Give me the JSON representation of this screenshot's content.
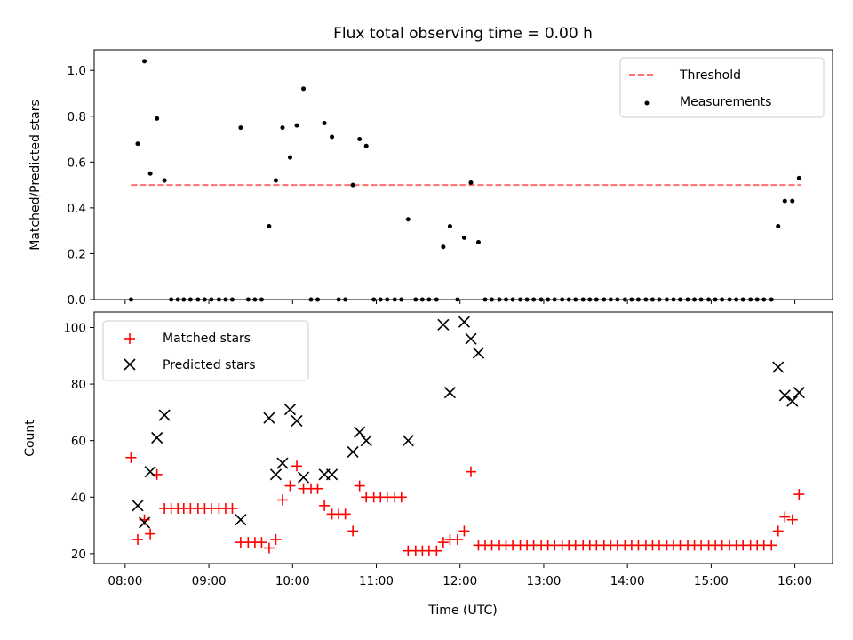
{
  "chart_data": [
    {
      "type": "scatter",
      "title": "Flux total observing time = 0.00 h",
      "xlabel": "",
      "ylabel": "Matched/Predicted stars",
      "xlim": [
        7.63,
        16.45
      ],
      "ylim": [
        0,
        1.09
      ],
      "yticks": [
        "0.0",
        "0.2",
        "0.4",
        "0.6",
        "0.8",
        "1.0"
      ],
      "ytick_values": [
        0,
        0.2,
        0.4,
        0.6,
        0.8,
        1.0
      ],
      "legend": {
        "placement": "top-right",
        "entries": [
          "Threshold",
          "Measurements"
        ]
      },
      "series": [
        {
          "name": "Threshold",
          "kind": "dashed-line",
          "color": "#ff6f6f",
          "x": [
            8.07,
            16.07
          ],
          "values": [
            0.5,
            0.5
          ]
        },
        {
          "name": "Measurements",
          "kind": "dot",
          "color": "#000000",
          "x": [
            8.07,
            8.15,
            8.23,
            8.3,
            8.38,
            8.47,
            8.55,
            8.63,
            8.7,
            8.78,
            8.87,
            8.95,
            9.03,
            9.12,
            9.2,
            9.28,
            9.38,
            9.47,
            9.55,
            9.63,
            9.72,
            9.8,
            9.88,
            9.97,
            10.05,
            10.13,
            10.22,
            10.3,
            10.38,
            10.47,
            10.55,
            10.63,
            10.72,
            10.8,
            10.88,
            10.97,
            11.05,
            11.13,
            11.22,
            11.3,
            11.38,
            11.47,
            11.55,
            11.63,
            11.72,
            11.8,
            11.88,
            11.97,
            12.05,
            12.13,
            12.22,
            12.3,
            12.38,
            12.47,
            12.55,
            12.63,
            12.72,
            12.8,
            12.88,
            12.97,
            13.05,
            13.13,
            13.22,
            13.3,
            13.38,
            13.47,
            13.55,
            13.63,
            13.72,
            13.8,
            13.88,
            13.97,
            14.05,
            14.13,
            14.22,
            14.3,
            14.38,
            14.47,
            14.55,
            14.63,
            14.72,
            14.8,
            14.88,
            14.97,
            15.05,
            15.13,
            15.22,
            15.3,
            15.38,
            15.47,
            15.55,
            15.63,
            15.72,
            15.8,
            15.88,
            15.97,
            16.05
          ],
          "values": [
            0,
            0.68,
            1.04,
            0.55,
            0.79,
            0.52,
            0,
            0,
            0,
            0,
            0,
            0,
            0,
            0,
            0,
            0,
            0.75,
            0,
            0,
            0,
            0.32,
            0.52,
            0.75,
            0.62,
            0.76,
            0.92,
            0,
            0,
            0.77,
            0.71,
            0,
            0,
            0.5,
            0.7,
            0.67,
            0,
            0,
            0,
            0,
            0,
            0.35,
            0,
            0,
            0,
            0,
            0.23,
            0.32,
            0,
            0.27,
            0.51,
            0.25,
            0,
            0,
            0,
            0,
            0,
            0,
            0,
            0,
            0,
            0,
            0,
            0,
            0,
            0,
            0,
            0,
            0,
            0,
            0,
            0,
            0,
            0,
            0,
            0,
            0,
            0,
            0,
            0,
            0,
            0,
            0,
            0,
            0,
            0,
            0,
            0,
            0,
            0,
            0,
            0,
            0,
            0,
            0.32,
            0.43,
            0.43,
            0.53
          ]
        }
      ]
    },
    {
      "type": "scatter",
      "title": "",
      "xlabel": "Time (UTC)",
      "ylabel": "Count",
      "xlim": [
        7.63,
        16.45
      ],
      "ylim": [
        16.5,
        105.5
      ],
      "yticks": [
        "20",
        "40",
        "60",
        "80",
        "100"
      ],
      "ytick_values": [
        20,
        40,
        60,
        80,
        100
      ],
      "xticks": [
        "08:00",
        "09:00",
        "10:00",
        "11:00",
        "12:00",
        "13:00",
        "14:00",
        "15:00",
        "16:00"
      ],
      "xtick_values": [
        8,
        9,
        10,
        11,
        12,
        13,
        14,
        15,
        16
      ],
      "legend": {
        "placement": "top-left",
        "entries": [
          "Matched stars",
          "Predicted stars"
        ]
      },
      "series": [
        {
          "name": "Matched stars",
          "kind": "plus",
          "color": "#ff0000",
          "x": [
            8.07,
            8.15,
            8.23,
            8.3,
            8.38,
            8.47,
            8.55,
            8.63,
            8.7,
            8.78,
            8.87,
            8.95,
            9.03,
            9.12,
            9.2,
            9.28,
            9.38,
            9.47,
            9.55,
            9.63,
            9.72,
            9.8,
            9.88,
            9.97,
            10.05,
            10.13,
            10.22,
            10.3,
            10.38,
            10.47,
            10.55,
            10.63,
            10.72,
            10.8,
            10.88,
            10.97,
            11.05,
            11.13,
            11.22,
            11.3,
            11.38,
            11.47,
            11.55,
            11.63,
            11.72,
            11.8,
            11.88,
            11.97,
            12.05,
            12.13,
            12.22,
            12.3,
            12.38,
            12.47,
            12.55,
            12.63,
            12.72,
            12.8,
            12.88,
            12.97,
            13.05,
            13.13,
            13.22,
            13.3,
            13.38,
            13.47,
            13.55,
            13.63,
            13.72,
            13.8,
            13.88,
            13.97,
            14.05,
            14.13,
            14.22,
            14.3,
            14.38,
            14.47,
            14.55,
            14.63,
            14.72,
            14.8,
            14.88,
            14.97,
            15.05,
            15.13,
            15.22,
            15.3,
            15.38,
            15.47,
            15.55,
            15.63,
            15.72,
            15.8,
            15.88,
            15.97,
            16.05
          ],
          "values": [
            54,
            25,
            32,
            27,
            48,
            36,
            36,
            36,
            36,
            36,
            36,
            36,
            36,
            36,
            36,
            36,
            24,
            24,
            24,
            24,
            22,
            25,
            39,
            44,
            51,
            43,
            43,
            43,
            37,
            34,
            34,
            34,
            28,
            44,
            40,
            40,
            40,
            40,
            40,
            40,
            21,
            21,
            21,
            21,
            21,
            24,
            25,
            25,
            28,
            49,
            23,
            23,
            23,
            23,
            23,
            23,
            23,
            23,
            23,
            23,
            23,
            23,
            23,
            23,
            23,
            23,
            23,
            23,
            23,
            23,
            23,
            23,
            23,
            23,
            23,
            23,
            23,
            23,
            23,
            23,
            23,
            23,
            23,
            23,
            23,
            23,
            23,
            23,
            23,
            23,
            23,
            23,
            23,
            28,
            33,
            32,
            41
          ]
        },
        {
          "name": "Predicted stars",
          "kind": "cross",
          "color": "#000000",
          "x": [
            8.15,
            8.23,
            8.3,
            8.38,
            8.47,
            9.38,
            9.72,
            9.8,
            9.88,
            9.97,
            10.05,
            10.13,
            10.38,
            10.47,
            10.72,
            10.8,
            10.88,
            11.38,
            11.8,
            11.88,
            12.05,
            12.13,
            12.22,
            15.8,
            15.88,
            15.97,
            16.05
          ],
          "values": [
            37,
            31,
            49,
            61,
            69,
            32,
            68,
            48,
            52,
            71,
            67,
            47,
            48,
            48,
            56,
            63,
            60,
            60,
            101,
            77,
            102,
            96,
            91,
            86,
            76,
            74,
            77
          ]
        }
      ]
    }
  ]
}
